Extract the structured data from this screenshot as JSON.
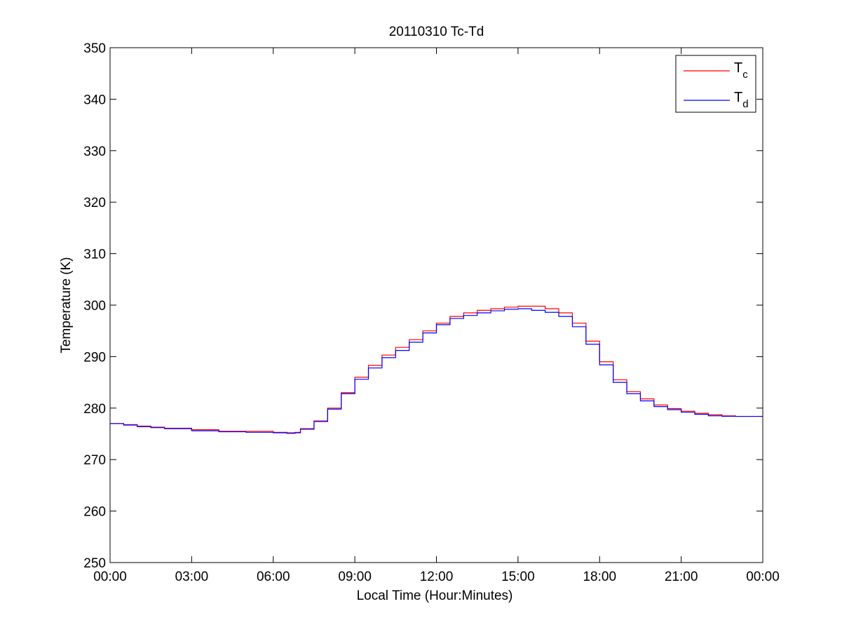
{
  "chart_data": {
    "type": "line",
    "title": "20110310 Tc-Td",
    "xlabel": "Local Time (Hour:Minutes)",
    "ylabel": "Temperature (K)",
    "xlim": [
      0,
      24
    ],
    "ylim": [
      250,
      350
    ],
    "x_ticks": [
      0,
      3,
      6,
      9,
      12,
      15,
      18,
      21,
      24
    ],
    "x_tick_labels": [
      "00:00",
      "03:00",
      "06:00",
      "09:00",
      "12:00",
      "15:00",
      "18:00",
      "21:00",
      "00:00"
    ],
    "y_ticks": [
      250,
      260,
      270,
      280,
      290,
      300,
      310,
      320,
      330,
      340,
      350
    ],
    "y_tick_labels": [
      "250",
      "260",
      "270",
      "280",
      "290",
      "300",
      "310",
      "320",
      "330",
      "340",
      "350"
    ],
    "grid": false,
    "legend_position": "top-right",
    "series": [
      {
        "name": "Tc",
        "legend_main": "T",
        "legend_sub": "c",
        "color": "#ff0000",
        "x": [
          0,
          0.5,
          1,
          1.5,
          2,
          3,
          4,
          5,
          6,
          6.5,
          6.8,
          7,
          7.5,
          8,
          8.5,
          9,
          9.5,
          10,
          10.5,
          11,
          11.5,
          12,
          12.5,
          13,
          13.5,
          14,
          14.5,
          15,
          15.5,
          16,
          16.5,
          17,
          17.5,
          18,
          18.5,
          19,
          19.5,
          20,
          20.5,
          21,
          21.5,
          22,
          22.5,
          23,
          23.5,
          24
        ],
        "y": [
          277,
          276.8,
          276.5,
          276.3,
          276.1,
          275.8,
          275.5,
          275.5,
          275.3,
          275.2,
          275.3,
          276,
          277.5,
          280,
          283,
          286,
          288.3,
          290.3,
          291.8,
          293.3,
          295,
          296.5,
          297.8,
          298.5,
          299,
          299.3,
          299.6,
          299.8,
          299.8,
          299.3,
          298.5,
          296.5,
          293,
          289,
          285.5,
          283.2,
          281.8,
          280.6,
          279.9,
          279.4,
          279,
          278.7,
          278.5,
          278.4,
          278.4,
          278.4
        ]
      },
      {
        "name": "Td",
        "legend_main": "T",
        "legend_sub": "d",
        "color": "#0000ff",
        "x": [
          0,
          0.5,
          1,
          1.5,
          2,
          3,
          4,
          5,
          6,
          6.5,
          6.8,
          7,
          7.5,
          8,
          8.5,
          9,
          9.5,
          10,
          10.5,
          11,
          11.5,
          12,
          12.5,
          13,
          13.5,
          14,
          14.5,
          15,
          15.5,
          16,
          16.5,
          17,
          17.5,
          18,
          18.5,
          19,
          19.5,
          20,
          20.5,
          21,
          21.5,
          22,
          22.5,
          23,
          23.5,
          24
        ],
        "y": [
          277,
          276.7,
          276.4,
          276.2,
          276,
          275.6,
          275.4,
          275.3,
          275.2,
          275.1,
          275.2,
          275.9,
          277.4,
          279.8,
          282.8,
          285.6,
          287.8,
          289.8,
          291.2,
          292.8,
          294.6,
          296.2,
          297.4,
          298,
          298.5,
          298.9,
          299.2,
          299.3,
          299,
          298.6,
          297.8,
          295.8,
          292.4,
          288.4,
          285,
          282.8,
          281.4,
          280.3,
          279.7,
          279.2,
          278.8,
          278.5,
          278.4,
          278.4,
          278.4,
          278.4
        ]
      }
    ]
  }
}
